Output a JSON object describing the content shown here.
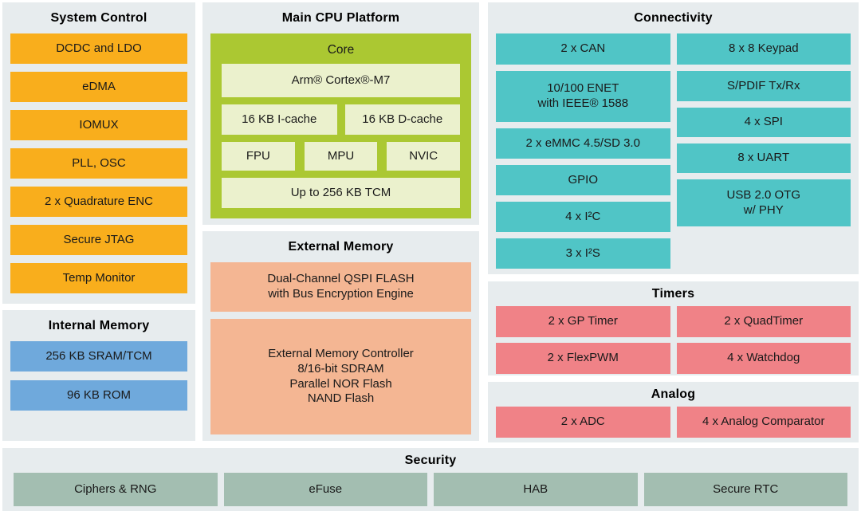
{
  "colors": {
    "panel_background": "#E7ECEE",
    "system_control_orange": "#F9AE1C",
    "internal_memory_blue": "#6FA9DC",
    "cpu_core_green": "#ABC832",
    "cpu_inner_pale_green": "#EBF1CD",
    "connectivity_teal": "#50C5C6",
    "external_memory_salmon": "#F4B693",
    "timers_analog_pink": "#F08287",
    "security_sage": "#A3BEB1",
    "text": "#1a1a1a"
  },
  "system_control": {
    "title": "System Control",
    "blocks": [
      "DCDC and LDO",
      "eDMA",
      "IOMUX",
      "PLL, OSC",
      "2 x Quadrature ENC",
      "Secure JTAG",
      "Temp Monitor"
    ]
  },
  "internal_memory": {
    "title": "Internal Memory",
    "blocks": [
      "256 KB SRAM/TCM",
      "96 KB ROM"
    ]
  },
  "main_cpu": {
    "title": "Main CPU Platform",
    "core_label": "Core",
    "cortex": "Arm® Cortex®-M7",
    "icache": "16 KB I-cache",
    "dcache": "16 KB D-cache",
    "fpu": "FPU",
    "mpu": "MPU",
    "nvic": "NVIC",
    "tcm": "Up to 256 KB TCM"
  },
  "external_memory": {
    "title": "External Memory",
    "qspi": "Dual-Channel QSPI FLASH\nwith Bus Encryption Engine",
    "controller": "External Memory Controller\n8/16-bit SDRAM\nParallel NOR Flash\nNAND Flash"
  },
  "connectivity": {
    "title": "Connectivity",
    "left": [
      "2 x CAN",
      "10/100 ENET\nwith IEEE® 1588",
      "2 x eMMC 4.5/SD 3.0",
      "GPIO",
      "4 x I²C",
      "3 x I²S"
    ],
    "right": [
      "8 x 8 Keypad",
      "S/PDIF Tx/Rx",
      "4 x SPI",
      "8 x UART",
      "USB 2.0 OTG\nw/ PHY"
    ]
  },
  "timers": {
    "title": "Timers",
    "blocks": [
      "2 x GP Timer",
      "2 x QuadTimer",
      "2 x FlexPWM",
      "4 x Watchdog"
    ]
  },
  "analog": {
    "title": "Analog",
    "blocks": [
      "2 x ADC",
      "4 x Analog Comparator"
    ]
  },
  "security": {
    "title": "Security",
    "blocks": [
      "Ciphers & RNG",
      "eFuse",
      "HAB",
      "Secure RTC"
    ]
  }
}
